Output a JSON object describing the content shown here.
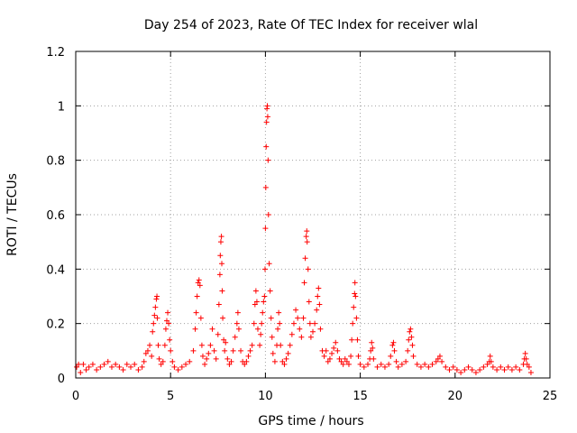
{
  "chart_data": {
    "type": "scatter",
    "title": "Day 254 of 2023, Rate Of TEC Index for receiver wlal",
    "xlabel": "GPS time / hours",
    "ylabel": "ROTI / TECUs",
    "xlim": [
      0,
      25
    ],
    "ylim": [
      0,
      1.2
    ],
    "xticks": [
      0,
      5,
      10,
      15,
      20,
      25
    ],
    "xtick_labels": [
      "0",
      "5",
      "10",
      "15",
      "20",
      "25"
    ],
    "yticks": [
      0,
      0.2,
      0.4,
      0.6,
      0.8,
      1.0,
      1.2
    ],
    "ytick_labels": [
      "0",
      "0.2",
      "0.4",
      "0.6",
      "0.8",
      "1",
      "1.2"
    ],
    "grid": true,
    "marker": "+",
    "color": "#ff0000",
    "series": [
      {
        "name": "ROTI",
        "points": [
          [
            0.05,
            0.04
          ],
          [
            0.15,
            0.05
          ],
          [
            0.25,
            0.02
          ],
          [
            0.4,
            0.05
          ],
          [
            0.55,
            0.03
          ],
          [
            0.7,
            0.04
          ],
          [
            0.9,
            0.05
          ],
          [
            1.1,
            0.03
          ],
          [
            1.3,
            0.04
          ],
          [
            1.5,
            0.05
          ],
          [
            1.7,
            0.06
          ],
          [
            1.9,
            0.04
          ],
          [
            2.1,
            0.05
          ],
          [
            2.3,
            0.04
          ],
          [
            2.5,
            0.03
          ],
          [
            2.7,
            0.05
          ],
          [
            2.9,
            0.04
          ],
          [
            3.1,
            0.05
          ],
          [
            3.3,
            0.03
          ],
          [
            3.5,
            0.04
          ],
          [
            3.6,
            0.06
          ],
          [
            3.7,
            0.09
          ],
          [
            3.8,
            0.1
          ],
          [
            3.9,
            0.12
          ],
          [
            4.0,
            0.08
          ],
          [
            4.05,
            0.17
          ],
          [
            4.1,
            0.2
          ],
          [
            4.15,
            0.23
          ],
          [
            4.2,
            0.26
          ],
          [
            4.25,
            0.29
          ],
          [
            4.28,
            0.3
          ],
          [
            4.3,
            0.22
          ],
          [
            4.35,
            0.12
          ],
          [
            4.4,
            0.07
          ],
          [
            4.5,
            0.05
          ],
          [
            4.6,
            0.06
          ],
          [
            4.7,
            0.12
          ],
          [
            4.75,
            0.18
          ],
          [
            4.8,
            0.21
          ],
          [
            4.85,
            0.24
          ],
          [
            4.9,
            0.2
          ],
          [
            4.95,
            0.14
          ],
          [
            5.0,
            0.1
          ],
          [
            5.1,
            0.06
          ],
          [
            5.2,
            0.04
          ],
          [
            5.4,
            0.03
          ],
          [
            5.6,
            0.04
          ],
          [
            5.8,
            0.05
          ],
          [
            6.0,
            0.06
          ],
          [
            6.2,
            0.1
          ],
          [
            6.3,
            0.18
          ],
          [
            6.35,
            0.24
          ],
          [
            6.4,
            0.3
          ],
          [
            6.45,
            0.35
          ],
          [
            6.5,
            0.36
          ],
          [
            6.55,
            0.34
          ],
          [
            6.6,
            0.22
          ],
          [
            6.65,
            0.12
          ],
          [
            6.7,
            0.08
          ],
          [
            6.8,
            0.05
          ],
          [
            6.9,
            0.07
          ],
          [
            7.0,
            0.09
          ],
          [
            7.1,
            0.12
          ],
          [
            7.2,
            0.18
          ],
          [
            7.3,
            0.1
          ],
          [
            7.4,
            0.07
          ],
          [
            7.5,
            0.16
          ],
          [
            7.55,
            0.27
          ],
          [
            7.6,
            0.38
          ],
          [
            7.62,
            0.45
          ],
          [
            7.65,
            0.5
          ],
          [
            7.68,
            0.52
          ],
          [
            7.7,
            0.42
          ],
          [
            7.72,
            0.32
          ],
          [
            7.75,
            0.22
          ],
          [
            7.8,
            0.14
          ],
          [
            7.85,
            0.1
          ],
          [
            7.9,
            0.13
          ],
          [
            8.0,
            0.07
          ],
          [
            8.1,
            0.05
          ],
          [
            8.2,
            0.06
          ],
          [
            8.3,
            0.1
          ],
          [
            8.4,
            0.15
          ],
          [
            8.5,
            0.2
          ],
          [
            8.55,
            0.24
          ],
          [
            8.6,
            0.18
          ],
          [
            8.7,
            0.1
          ],
          [
            8.8,
            0.06
          ],
          [
            8.9,
            0.05
          ],
          [
            9.0,
            0.06
          ],
          [
            9.1,
            0.08
          ],
          [
            9.2,
            0.1
          ],
          [
            9.3,
            0.12
          ],
          [
            9.4,
            0.2
          ],
          [
            9.45,
            0.27
          ],
          [
            9.5,
            0.32
          ],
          [
            9.55,
            0.28
          ],
          [
            9.6,
            0.18
          ],
          [
            9.7,
            0.12
          ],
          [
            9.75,
            0.16
          ],
          [
            9.8,
            0.2
          ],
          [
            9.85,
            0.24
          ],
          [
            9.9,
            0.28
          ],
          [
            9.95,
            0.3
          ],
          [
            9.98,
            0.4
          ],
          [
            10.0,
            0.55
          ],
          [
            10.02,
            0.7
          ],
          [
            10.04,
            0.85
          ],
          [
            10.06,
            0.94
          ],
          [
            10.08,
            0.99
          ],
          [
            10.1,
            1.0
          ],
          [
            10.12,
            0.96
          ],
          [
            10.14,
            0.8
          ],
          [
            10.16,
            0.6
          ],
          [
            10.2,
            0.42
          ],
          [
            10.25,
            0.32
          ],
          [
            10.3,
            0.22
          ],
          [
            10.35,
            0.15
          ],
          [
            10.4,
            0.09
          ],
          [
            10.5,
            0.06
          ],
          [
            10.6,
            0.12
          ],
          [
            10.65,
            0.18
          ],
          [
            10.7,
            0.24
          ],
          [
            10.75,
            0.2
          ],
          [
            10.8,
            0.12
          ],
          [
            10.9,
            0.06
          ],
          [
            11.0,
            0.05
          ],
          [
            11.1,
            0.07
          ],
          [
            11.2,
            0.09
          ],
          [
            11.3,
            0.12
          ],
          [
            11.4,
            0.16
          ],
          [
            11.5,
            0.2
          ],
          [
            11.6,
            0.25
          ],
          [
            11.7,
            0.22
          ],
          [
            11.8,
            0.18
          ],
          [
            11.9,
            0.15
          ],
          [
            12.0,
            0.22
          ],
          [
            12.05,
            0.35
          ],
          [
            12.1,
            0.44
          ],
          [
            12.15,
            0.52
          ],
          [
            12.18,
            0.54
          ],
          [
            12.2,
            0.5
          ],
          [
            12.25,
            0.4
          ],
          [
            12.3,
            0.28
          ],
          [
            12.35,
            0.2
          ],
          [
            12.4,
            0.15
          ],
          [
            12.5,
            0.17
          ],
          [
            12.6,
            0.2
          ],
          [
            12.7,
            0.25
          ],
          [
            12.75,
            0.3
          ],
          [
            12.8,
            0.33
          ],
          [
            12.85,
            0.27
          ],
          [
            12.9,
            0.18
          ],
          [
            13.0,
            0.1
          ],
          [
            13.1,
            0.08
          ],
          [
            13.2,
            0.1
          ],
          [
            13.3,
            0.06
          ],
          [
            13.4,
            0.07
          ],
          [
            13.5,
            0.09
          ],
          [
            13.6,
            0.11
          ],
          [
            13.7,
            0.13
          ],
          [
            13.8,
            0.1
          ],
          [
            13.9,
            0.07
          ],
          [
            14.0,
            0.06
          ],
          [
            14.1,
            0.05
          ],
          [
            14.2,
            0.07
          ],
          [
            14.3,
            0.06
          ],
          [
            14.4,
            0.05
          ],
          [
            14.5,
            0.08
          ],
          [
            14.55,
            0.14
          ],
          [
            14.6,
            0.2
          ],
          [
            14.65,
            0.26
          ],
          [
            14.7,
            0.31
          ],
          [
            14.72,
            0.35
          ],
          [
            14.75,
            0.3
          ],
          [
            14.8,
            0.22
          ],
          [
            14.85,
            0.14
          ],
          [
            14.9,
            0.08
          ],
          [
            15.0,
            0.05
          ],
          [
            15.2,
            0.04
          ],
          [
            15.4,
            0.05
          ],
          [
            15.5,
            0.07
          ],
          [
            15.55,
            0.1
          ],
          [
            15.6,
            0.13
          ],
          [
            15.65,
            0.11
          ],
          [
            15.7,
            0.07
          ],
          [
            15.9,
            0.04
          ],
          [
            16.1,
            0.05
          ],
          [
            16.3,
            0.04
          ],
          [
            16.5,
            0.05
          ],
          [
            16.6,
            0.08
          ],
          [
            16.7,
            0.12
          ],
          [
            16.75,
            0.13
          ],
          [
            16.8,
            0.1
          ],
          [
            16.9,
            0.06
          ],
          [
            17.0,
            0.04
          ],
          [
            17.2,
            0.05
          ],
          [
            17.4,
            0.06
          ],
          [
            17.5,
            0.1
          ],
          [
            17.55,
            0.14
          ],
          [
            17.6,
            0.17
          ],
          [
            17.65,
            0.18
          ],
          [
            17.7,
            0.15
          ],
          [
            17.75,
            0.12
          ],
          [
            17.8,
            0.08
          ],
          [
            18.0,
            0.05
          ],
          [
            18.2,
            0.04
          ],
          [
            18.4,
            0.05
          ],
          [
            18.6,
            0.04
          ],
          [
            18.8,
            0.05
          ],
          [
            19.0,
            0.06
          ],
          [
            19.1,
            0.07
          ],
          [
            19.2,
            0.08
          ],
          [
            19.3,
            0.06
          ],
          [
            19.5,
            0.04
          ],
          [
            19.7,
            0.03
          ],
          [
            19.9,
            0.04
          ],
          [
            20.1,
            0.03
          ],
          [
            20.3,
            0.02
          ],
          [
            20.5,
            0.03
          ],
          [
            20.7,
            0.04
          ],
          [
            20.9,
            0.03
          ],
          [
            21.1,
            0.02
          ],
          [
            21.3,
            0.03
          ],
          [
            21.5,
            0.04
          ],
          [
            21.7,
            0.05
          ],
          [
            21.8,
            0.06
          ],
          [
            21.85,
            0.08
          ],
          [
            21.9,
            0.06
          ],
          [
            22.0,
            0.04
          ],
          [
            22.2,
            0.03
          ],
          [
            22.4,
            0.04
          ],
          [
            22.6,
            0.03
          ],
          [
            22.8,
            0.04
          ],
          [
            23.0,
            0.03
          ],
          [
            23.2,
            0.04
          ],
          [
            23.4,
            0.03
          ],
          [
            23.6,
            0.05
          ],
          [
            23.65,
            0.07
          ],
          [
            23.7,
            0.09
          ],
          [
            23.75,
            0.07
          ],
          [
            23.8,
            0.05
          ],
          [
            23.9,
            0.04
          ],
          [
            24.0,
            0.02
          ]
        ]
      }
    ]
  }
}
